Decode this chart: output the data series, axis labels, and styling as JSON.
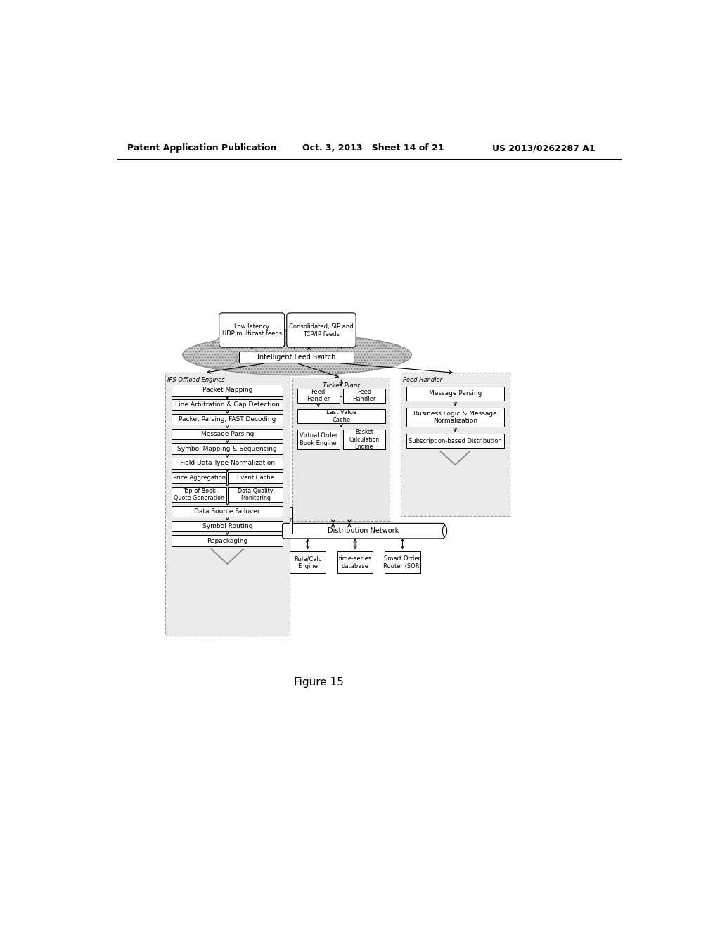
{
  "header_left": "Patent Application Publication",
  "header_mid": "Oct. 3, 2013   Sheet 14 of 21",
  "header_right": "US 2013/0262287 A1",
  "figure_label": "Figure 15",
  "background_color": "#ffffff",
  "cloud1_text": "Low latency\nUDP multicast feeds",
  "cloud2_text": "Consolidated, SIP and\nTCP/IP feeds",
  "ifs_box_text": "Intelligent Feed Switch",
  "ifs_label": "IFS Offload Engines",
  "ticker_label": "Ticker Plant",
  "feed_handler_label": "Feed Handler",
  "dist_label": "Distribution Network",
  "ifs_single_boxes": [
    "Packet Mapping",
    "Line Arbitration & Gap Detection",
    "Packet Parsing, FAST Decoding",
    "Message Parsing",
    "Symbol Mapping & Sequencing",
    "Field Data Type Normalization",
    "Data Source Failover",
    "Symbol Routing",
    "Repackaging"
  ],
  "ifs_pair1": [
    "Price Aggregation",
    "Event Cache"
  ],
  "ifs_pair2": [
    "Top-of-Book\nQuote Generation",
    "Data Quality\nMonitoring"
  ],
  "ticker_fh_pair": [
    "Feed\nHandler",
    "Feed\nHandler"
  ],
  "ticker_lvc": "Last Value\nCache",
  "ticker_pair": [
    "Virtual Order\nBook Engine",
    "Basket\nCalculation\nEngine"
  ],
  "fh_boxes": [
    "Message Parsing",
    "Business Logic & Message\nNormalization",
    "Subscription-based Distribution"
  ],
  "dist_boxes": [
    "Rule/Calc\nEngine",
    "time-series\ndatabase",
    "Smart Order\nRouter (SOR)"
  ]
}
